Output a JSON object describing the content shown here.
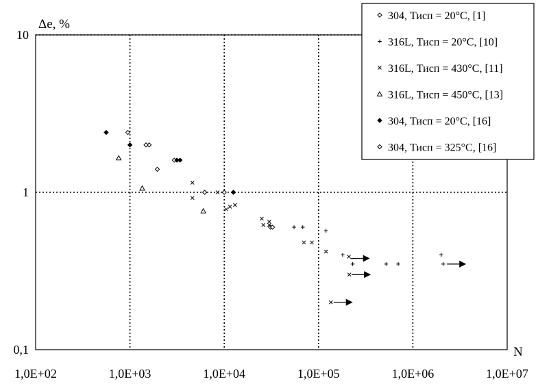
{
  "chart_data": {
    "type": "scatter",
    "xlabel": "N",
    "ylabel": "Δe, %",
    "xscale": "log",
    "yscale": "log",
    "xlim": [
      100,
      10000000
    ],
    "ylim": [
      0.1,
      10
    ],
    "x_ticks": [
      "1,0E+02",
      "1,0E+03",
      "1,0E+04",
      "1,0E+05",
      "1,0E+06",
      "1,0E+07"
    ],
    "y_ticks": [
      "10",
      "1",
      "0,1"
    ],
    "grid": true,
    "legend_position": "top-right",
    "series": [
      {
        "name": "304, Тисп = 20°C, [1]",
        "marker": "diamond-open",
        "points": [
          [
            1600,
            2.0
          ],
          [
            1950,
            1.4
          ],
          [
            2950,
            1.6
          ],
          [
            10000,
            1.0
          ],
          [
            31000,
            0.6
          ],
          [
            32500,
            0.6
          ]
        ]
      },
      {
        "name": "316L, Тисп = 20°C, [10]",
        "marker": "plus",
        "points": [
          [
            55000,
            0.6
          ],
          [
            68000,
            0.6
          ],
          [
            120000,
            0.57
          ],
          [
            180000,
            0.4
          ],
          [
            230000,
            0.35
          ],
          [
            520000,
            0.35
          ],
          [
            700000,
            0.35
          ],
          [
            2000000,
            0.4
          ],
          [
            2100000,
            0.35
          ]
        ]
      },
      {
        "name": "316L, Тисп = 430°C, [11]",
        "marker": "x",
        "points": [
          [
            4600,
            1.15
          ],
          [
            4600,
            0.92
          ],
          [
            8500,
            1.0
          ],
          [
            10500,
            0.78
          ],
          [
            11500,
            0.81
          ],
          [
            13000,
            0.83
          ],
          [
            25000,
            0.68
          ],
          [
            26000,
            0.62
          ],
          [
            30000,
            0.62
          ],
          [
            30000,
            0.65
          ],
          [
            70000,
            0.48
          ],
          [
            85000,
            0.48
          ],
          [
            120000,
            0.42
          ],
          [
            210000,
            0.39
          ],
          [
            212000,
            0.3
          ],
          [
            135000,
            0.2
          ]
        ]
      },
      {
        "name": "316L, Тисп = 450°C, [13]",
        "marker": "triangle-open",
        "points": [
          [
            760,
            1.65
          ],
          [
            1350,
            1.06
          ],
          [
            6000,
            0.76
          ]
        ]
      },
      {
        "name": "304, Тисп = 20°C, [16]",
        "marker": "diamond-filled",
        "points": [
          [
            560,
            2.4
          ],
          [
            1000,
            2.0
          ],
          [
            3150,
            1.6
          ],
          [
            3400,
            1.6
          ],
          [
            12500,
            1.0
          ]
        ]
      },
      {
        "name": "304,  Тисп = 325°C, [16]",
        "marker": "diamond-open",
        "points": [
          [
            950,
            2.4
          ],
          [
            1480,
            2.0
          ],
          [
            6200,
            1.0
          ]
        ]
      }
    ],
    "runouts": [
      [
        205000,
        0.38
      ],
      [
        210000,
        0.3
      ],
      [
        135000,
        0.2
      ],
      [
        2150000,
        0.35
      ]
    ]
  }
}
